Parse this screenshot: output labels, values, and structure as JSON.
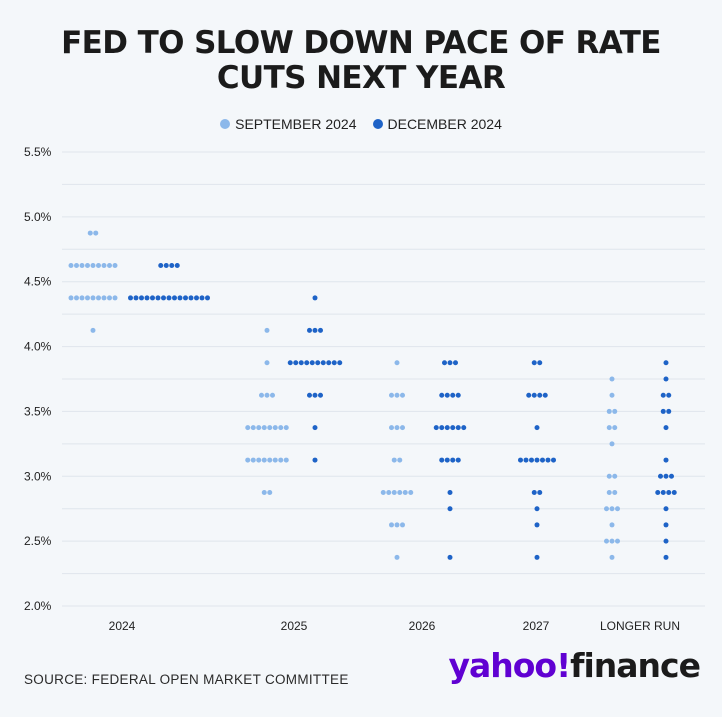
{
  "title_lines": [
    "FED TO SLOW DOWN PACE OF RATE",
    "CUTS NEXT YEAR"
  ],
  "source": "SOURCE: FEDERAL OPEN MARKET COMMITTEE",
  "brand": {
    "part1": "yahoo!",
    "part2": "finance"
  },
  "colors": {
    "september": "#8cb8ea",
    "december": "#1e63c7",
    "grid": "#dfe5ec",
    "background": "#f4f7fa"
  },
  "chart_data": {
    "type": "scatter",
    "title": "FED TO SLOW DOWN PACE OF RATE CUTS NEXT YEAR",
    "categories": [
      "2024",
      "2025",
      "2026",
      "2027",
      "LONGER RUN"
    ],
    "ylim": [
      2.0,
      5.5
    ],
    "yticks": [
      "5.5%",
      "5.0%",
      "4.5%",
      "4.0%",
      "3.5%",
      "3.0%",
      "2.5%",
      "2.0%"
    ],
    "grid": true,
    "legend_placement": "top-center",
    "series": [
      {
        "name": "SEPTEMBER 2024",
        "points": {
          "2024": [
            [
              4.875,
              2
            ],
            [
              4.625,
              9
            ],
            [
              4.375,
              9
            ],
            [
              4.125,
              1
            ]
          ],
          "2025": [
            [
              4.125,
              1
            ],
            [
              3.875,
              1
            ],
            [
              3.625,
              3
            ],
            [
              3.375,
              8
            ],
            [
              3.125,
              8
            ],
            [
              2.875,
              2
            ]
          ],
          "2026": [
            [
              3.875,
              1
            ],
            [
              3.625,
              3
            ],
            [
              3.375,
              3
            ],
            [
              3.125,
              2
            ],
            [
              2.875,
              6
            ],
            [
              2.625,
              3
            ],
            [
              2.375,
              1
            ]
          ],
          "LONGER RUN": [
            [
              3.75,
              1
            ],
            [
              3.625,
              1
            ],
            [
              3.5,
              2
            ],
            [
              3.375,
              2
            ],
            [
              3.25,
              1
            ],
            [
              3.0,
              2
            ],
            [
              2.875,
              2
            ],
            [
              2.75,
              3
            ],
            [
              2.625,
              1
            ],
            [
              2.5,
              3
            ],
            [
              2.375,
              1
            ]
          ]
        }
      },
      {
        "name": "DECEMBER 2024",
        "points": {
          "2024": [
            [
              4.625,
              4
            ],
            [
              4.375,
              15
            ]
          ],
          "2025": [
            [
              4.375,
              1
            ],
            [
              4.125,
              3
            ],
            [
              3.875,
              10
            ],
            [
              3.625,
              3
            ],
            [
              3.375,
              1
            ],
            [
              3.125,
              1
            ]
          ],
          "2026": [
            [
              3.875,
              3
            ],
            [
              3.625,
              4
            ],
            [
              3.375,
              6
            ],
            [
              3.125,
              4
            ],
            [
              2.875,
              1
            ],
            [
              2.75,
              1
            ],
            [
              2.375,
              1
            ]
          ],
          "2027": [
            [
              3.875,
              2
            ],
            [
              3.625,
              4
            ],
            [
              3.375,
              1
            ],
            [
              3.125,
              7
            ],
            [
              2.875,
              2
            ],
            [
              2.75,
              1
            ],
            [
              2.625,
              1
            ],
            [
              2.375,
              1
            ]
          ],
          "LONGER RUN": [
            [
              3.875,
              1
            ],
            [
              3.75,
              1
            ],
            [
              3.625,
              2
            ],
            [
              3.5,
              2
            ],
            [
              3.375,
              1
            ],
            [
              3.125,
              1
            ],
            [
              3.0,
              3
            ],
            [
              2.875,
              4
            ],
            [
              2.75,
              1
            ],
            [
              2.625,
              1
            ],
            [
              2.5,
              1
            ],
            [
              2.375,
              1
            ]
          ]
        }
      }
    ]
  }
}
